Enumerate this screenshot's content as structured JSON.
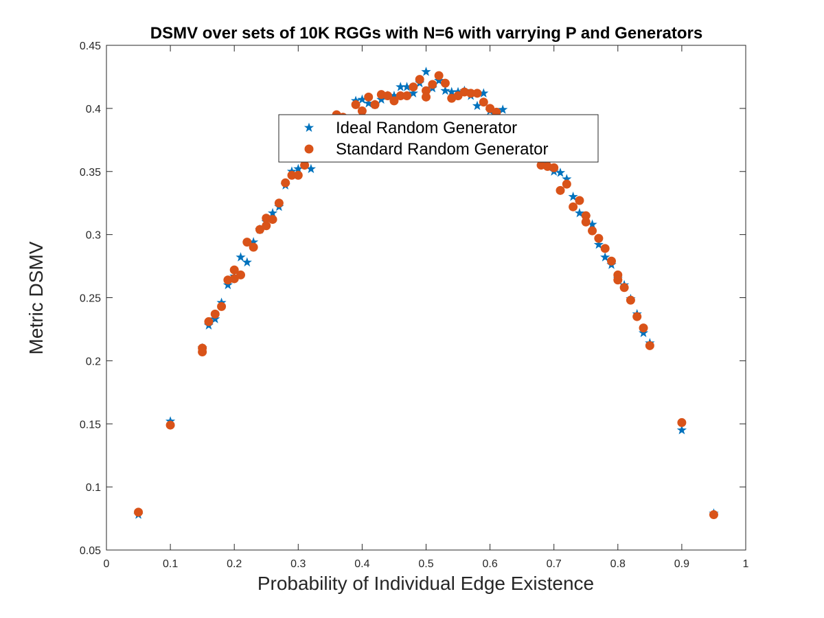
{
  "chart_data": {
    "type": "scatter",
    "title": "DSMV over sets of 10K RGGs with N=6 with varrying P and Generators",
    "xlabel": "Probability of Individual Edge Existence",
    "ylabel": "Metric DSMV",
    "xlim": [
      0,
      1
    ],
    "ylim": [
      0.05,
      0.45
    ],
    "xticks": [
      "0",
      "0.1",
      "0.2",
      "0.3",
      "0.4",
      "0.5",
      "0.6",
      "0.7",
      "0.8",
      "0.9",
      "1"
    ],
    "yticks": [
      "0.05",
      "0.1",
      "0.15",
      "0.2",
      "0.25",
      "0.3",
      "0.35",
      "0.4",
      "0.45"
    ],
    "grid": false,
    "legend_position": "top-center",
    "series": [
      {
        "name": "Ideal Random Generator",
        "marker": "star",
        "color": "#0072BD",
        "points": [
          [
            0.05,
            0.078
          ],
          [
            0.1,
            0.152
          ],
          [
            0.15,
            0.21
          ],
          [
            0.16,
            0.228
          ],
          [
            0.17,
            0.233
          ],
          [
            0.18,
            0.246
          ],
          [
            0.19,
            0.26
          ],
          [
            0.2,
            0.267
          ],
          [
            0.21,
            0.282
          ],
          [
            0.22,
            0.278
          ],
          [
            0.23,
            0.294
          ],
          [
            0.24,
            0.304
          ],
          [
            0.25,
            0.31
          ],
          [
            0.26,
            0.317
          ],
          [
            0.27,
            0.322
          ],
          [
            0.28,
            0.339
          ],
          [
            0.29,
            0.35
          ],
          [
            0.3,
            0.352
          ],
          [
            0.31,
            0.357
          ],
          [
            0.32,
            0.352
          ],
          [
            0.36,
            0.393
          ],
          [
            0.37,
            0.392
          ],
          [
            0.39,
            0.406
          ],
          [
            0.4,
            0.407
          ],
          [
            0.41,
            0.404
          ],
          [
            0.42,
            0.403
          ],
          [
            0.43,
            0.407
          ],
          [
            0.44,
            0.41
          ],
          [
            0.45,
            0.41
          ],
          [
            0.46,
            0.417
          ],
          [
            0.47,
            0.417
          ],
          [
            0.48,
            0.412
          ],
          [
            0.49,
            0.42
          ],
          [
            0.5,
            0.429
          ],
          [
            0.51,
            0.416
          ],
          [
            0.52,
            0.422
          ],
          [
            0.53,
            0.414
          ],
          [
            0.54,
            0.413
          ],
          [
            0.55,
            0.413
          ],
          [
            0.56,
            0.414
          ],
          [
            0.57,
            0.41
          ],
          [
            0.58,
            0.402
          ],
          [
            0.59,
            0.412
          ],
          [
            0.6,
            0.398
          ],
          [
            0.61,
            0.396
          ],
          [
            0.62,
            0.399
          ],
          [
            0.69,
            0.357
          ],
          [
            0.7,
            0.35
          ],
          [
            0.71,
            0.349
          ],
          [
            0.72,
            0.344
          ],
          [
            0.73,
            0.33
          ],
          [
            0.74,
            0.317
          ],
          [
            0.75,
            0.314
          ],
          [
            0.76,
            0.308
          ],
          [
            0.77,
            0.292
          ],
          [
            0.78,
            0.282
          ],
          [
            0.79,
            0.276
          ],
          [
            0.8,
            0.265
          ],
          [
            0.81,
            0.26
          ],
          [
            0.82,
            0.249
          ],
          [
            0.83,
            0.237
          ],
          [
            0.84,
            0.222
          ],
          [
            0.85,
            0.214
          ],
          [
            0.9,
            0.145
          ],
          [
            0.95,
            0.079
          ]
        ]
      },
      {
        "name": "Standard Random Generator",
        "marker": "circle",
        "color": "#D95319",
        "points": [
          [
            0.05,
            0.08
          ],
          [
            0.1,
            0.149
          ],
          [
            0.15,
            0.21
          ],
          [
            0.15,
            0.207
          ],
          [
            0.16,
            0.231
          ],
          [
            0.17,
            0.237
          ],
          [
            0.18,
            0.243
          ],
          [
            0.19,
            0.264
          ],
          [
            0.2,
            0.265
          ],
          [
            0.2,
            0.272
          ],
          [
            0.21,
            0.268
          ],
          [
            0.22,
            0.294
          ],
          [
            0.23,
            0.29
          ],
          [
            0.24,
            0.304
          ],
          [
            0.25,
            0.307
          ],
          [
            0.25,
            0.313
          ],
          [
            0.26,
            0.312
          ],
          [
            0.27,
            0.325
          ],
          [
            0.28,
            0.341
          ],
          [
            0.29,
            0.347
          ],
          [
            0.3,
            0.347
          ],
          [
            0.31,
            0.355
          ],
          [
            0.36,
            0.395
          ],
          [
            0.37,
            0.393
          ],
          [
            0.39,
            0.403
          ],
          [
            0.4,
            0.398
          ],
          [
            0.41,
            0.409
          ],
          [
            0.42,
            0.403
          ],
          [
            0.43,
            0.411
          ],
          [
            0.44,
            0.41
          ],
          [
            0.45,
            0.406
          ],
          [
            0.46,
            0.41
          ],
          [
            0.47,
            0.41
          ],
          [
            0.48,
            0.417
          ],
          [
            0.49,
            0.423
          ],
          [
            0.5,
            0.414
          ],
          [
            0.5,
            0.409
          ],
          [
            0.51,
            0.419
          ],
          [
            0.52,
            0.426
          ],
          [
            0.53,
            0.42
          ],
          [
            0.54,
            0.408
          ],
          [
            0.55,
            0.41
          ],
          [
            0.56,
            0.413
          ],
          [
            0.57,
            0.412
          ],
          [
            0.58,
            0.412
          ],
          [
            0.59,
            0.405
          ],
          [
            0.6,
            0.4
          ],
          [
            0.61,
            0.397
          ],
          [
            0.68,
            0.355
          ],
          [
            0.69,
            0.354
          ],
          [
            0.7,
            0.353
          ],
          [
            0.71,
            0.335
          ],
          [
            0.72,
            0.34
          ],
          [
            0.73,
            0.322
          ],
          [
            0.74,
            0.327
          ],
          [
            0.75,
            0.315
          ],
          [
            0.75,
            0.31
          ],
          [
            0.76,
            0.303
          ],
          [
            0.77,
            0.297
          ],
          [
            0.78,
            0.289
          ],
          [
            0.79,
            0.279
          ],
          [
            0.8,
            0.268
          ],
          [
            0.8,
            0.264
          ],
          [
            0.81,
            0.258
          ],
          [
            0.82,
            0.248
          ],
          [
            0.83,
            0.235
          ],
          [
            0.84,
            0.226
          ],
          [
            0.85,
            0.212
          ],
          [
            0.9,
            0.151
          ],
          [
            0.95,
            0.078
          ]
        ]
      }
    ]
  }
}
